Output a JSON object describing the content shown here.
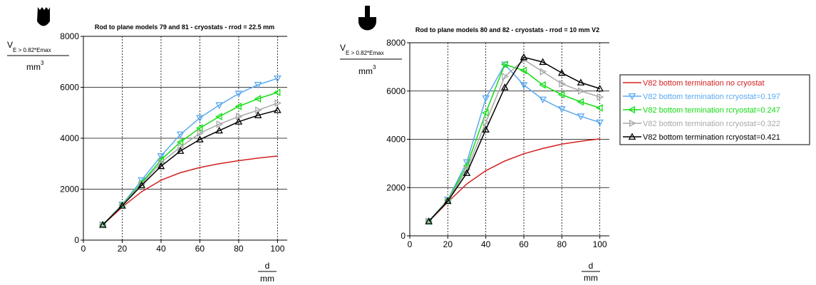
{
  "colors": {
    "no_cryostat": "#d42020",
    "r0197": "#5aaaf0",
    "r0247": "#10dd10",
    "r0322": "#a8a8a8",
    "r0421": "#000000"
  },
  "icons": [
    "rod-tip-rounded-icon",
    "rod-tip-ball-icon"
  ],
  "legend": {
    "entries": [
      {
        "label": "V82 bottom termination no cryostat",
        "color": "#d42020",
        "marker": "none"
      },
      {
        "label": "V82 bottom termination rcryostat=0.197",
        "color": "#5aaaf0",
        "marker": "triangle-down"
      },
      {
        "label": "V82 bottom termination rcryostat=0.247",
        "color": "#10dd10",
        "marker": "triangle-left"
      },
      {
        "label": "V82 bottom termination rcryostat=0.322",
        "color": "#a8a8a8",
        "marker": "triangle-right"
      },
      {
        "label": "V82 bottom termination rcryostat=0.421",
        "color": "#000000",
        "marker": "triangle-up"
      }
    ]
  },
  "chart_data": [
    {
      "type": "line",
      "title": "Rod to plane models 79 and 81 - cryostats - rrod = 22.5 mm",
      "ylabel": {
        "main": "V",
        "sub": "E > 0.82*Emax",
        "den_main": "mm",
        "den_sup": "3"
      },
      "xlabel": {
        "num": "d",
        "den": "mm"
      },
      "xlim": [
        0,
        105
      ],
      "ylim": [
        0,
        8000
      ],
      "xticks": [
        0,
        20,
        40,
        60,
        80,
        100
      ],
      "yticks": [
        0,
        2000,
        4000,
        6000,
        8000
      ],
      "grid": true,
      "x": [
        10,
        20,
        30,
        40,
        50,
        60,
        70,
        80,
        90,
        100
      ],
      "series": [
        {
          "key": "no_cryostat",
          "marker": "none",
          "values": [
            600,
            1300,
            1900,
            2350,
            2650,
            2850,
            3000,
            3120,
            3220,
            3300
          ]
        },
        {
          "key": "r0197",
          "marker": "triangle-down",
          "values": [
            600,
            1400,
            2350,
            3300,
            4150,
            4800,
            5300,
            5750,
            6100,
            6350
          ]
        },
        {
          "key": "r0247",
          "marker": "triangle-left",
          "values": [
            600,
            1380,
            2250,
            3150,
            3850,
            4400,
            4850,
            5250,
            5550,
            5800
          ]
        },
        {
          "key": "r0322",
          "marker": "triangle-right",
          "values": [
            600,
            1370,
            2200,
            3050,
            3650,
            4200,
            4550,
            4850,
            5100,
            5380
          ]
        },
        {
          "key": "r0421",
          "marker": "triangle-up",
          "values": [
            600,
            1350,
            2150,
            2900,
            3500,
            3950,
            4300,
            4650,
            4900,
            5100
          ]
        }
      ]
    },
    {
      "type": "line",
      "title": "Rod to plane models 80 and 82 - cryostats - rrod = 10 mm V2",
      "ylabel": {
        "main": "V",
        "sub": "E > 0.82*Emax",
        "den_main": "mm",
        "den_sup": "3"
      },
      "xlabel": {
        "num": "d",
        "den": "mm"
      },
      "xlim": [
        0,
        105
      ],
      "ylim": [
        0,
        8000
      ],
      "xticks": [
        0,
        20,
        40,
        60,
        80,
        100
      ],
      "yticks": [
        0,
        2000,
        4000,
        6000,
        8000
      ],
      "grid": true,
      "x": [
        10,
        20,
        30,
        40,
        50,
        60,
        70,
        80,
        90,
        100
      ],
      "series": [
        {
          "key": "no_cryostat",
          "marker": "none",
          "values": [
            600,
            1400,
            2150,
            2700,
            3100,
            3400,
            3620,
            3800,
            3920,
            4020
          ]
        },
        {
          "key": "r0197",
          "marker": "triangle-down",
          "values": [
            600,
            1500,
            3050,
            5700,
            7100,
            6250,
            5650,
            5250,
            4950,
            4700
          ]
        },
        {
          "key": "r0247",
          "marker": "triangle-left",
          "values": [
            600,
            1480,
            2900,
            5100,
            7100,
            6850,
            6250,
            5850,
            5550,
            5300
          ]
        },
        {
          "key": "r0322",
          "marker": "triangle-right",
          "values": [
            600,
            1460,
            2750,
            4700,
            6600,
            7300,
            6800,
            6300,
            6000,
            5750
          ]
        },
        {
          "key": "r0421",
          "marker": "triangle-up",
          "values": [
            600,
            1440,
            2600,
            4400,
            6150,
            7400,
            7200,
            6750,
            6350,
            6100
          ]
        }
      ]
    }
  ]
}
